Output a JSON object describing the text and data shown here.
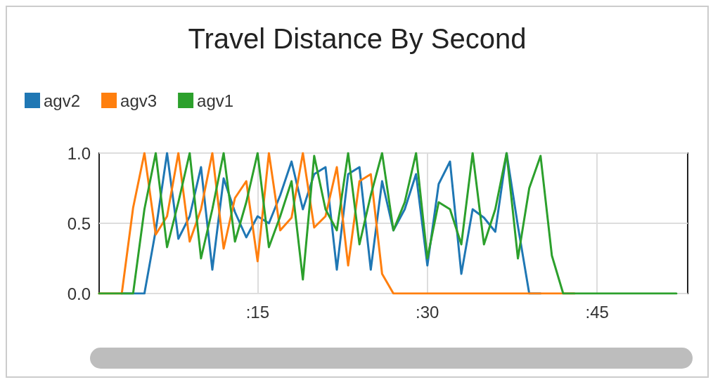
{
  "chart_data": {
    "type": "line",
    "title": "Travel Distance By Second",
    "x": [
      1,
      2,
      3,
      4,
      5,
      6,
      7,
      8,
      9,
      10,
      11,
      12,
      13,
      14,
      15,
      16,
      17,
      18,
      19,
      20,
      21,
      22,
      23,
      24,
      25,
      26,
      27,
      28,
      29,
      30,
      31,
      32,
      33,
      34,
      35,
      36,
      37,
      38,
      39,
      40,
      41,
      42,
      43,
      44,
      45,
      46,
      47,
      48,
      49,
      50,
      51,
      52
    ],
    "series": [
      {
        "name": "agv2",
        "color": "#1f77b4",
        "values": [
          null,
          null,
          0,
          0,
          0,
          0.45,
          1.0,
          0.39,
          0.55,
          0.9,
          0.17,
          0.82,
          0.58,
          0.4,
          0.55,
          0.5,
          0.7,
          0.94,
          0.6,
          0.85,
          0.9,
          0.17,
          0.85,
          0.9,
          0.17,
          0.8,
          0.45,
          0.6,
          0.85,
          0.2,
          0.78,
          0.94,
          0.14,
          0.6,
          0.54,
          0.44,
          1.0,
          0.48,
          0,
          0,
          null,
          null,
          null,
          null,
          null,
          null,
          null,
          null,
          null,
          null,
          null,
          null
        ]
      },
      {
        "name": "agv3",
        "color": "#ff7f0e",
        "values": [
          0,
          0,
          0,
          0.61,
          1.0,
          0.42,
          0.55,
          1.0,
          0.37,
          0.6,
          1.0,
          0.32,
          0.68,
          0.8,
          0.23,
          1.0,
          0.45,
          0.54,
          1.0,
          0.47,
          0.55,
          0.9,
          0.2,
          0.8,
          0.85,
          0.14,
          0,
          0,
          0,
          0,
          0,
          0,
          0,
          0,
          0,
          0,
          0,
          0,
          0,
          0,
          0,
          0,
          0,
          null,
          null,
          null,
          null,
          null,
          null,
          null,
          null,
          null
        ]
      },
      {
        "name": "agv1",
        "color": "#2ca02c",
        "values": [
          0,
          0,
          0,
          0,
          0.6,
          1.0,
          0.33,
          0.65,
          1.0,
          0.25,
          0.6,
          1.0,
          0.37,
          0.65,
          1.0,
          0.33,
          0.55,
          0.8,
          0.1,
          0.98,
          0.6,
          0.45,
          1.0,
          0.35,
          0.7,
          1.0,
          0.45,
          0.65,
          1.0,
          0.25,
          0.65,
          0.6,
          0.35,
          1.0,
          0.35,
          0.6,
          1.0,
          0.25,
          0.75,
          0.98,
          0.27,
          0,
          0,
          0,
          0,
          0,
          0,
          0,
          0,
          0,
          0,
          0
        ]
      }
    ],
    "xlim": [
      1,
      53
    ],
    "xticks": [
      {
        "value": 15,
        "label": ":15"
      },
      {
        "value": 30,
        "label": ":30"
      },
      {
        "value": 45,
        "label": ":45"
      }
    ],
    "ylim": [
      0,
      1
    ],
    "yticks": [
      {
        "value": 0,
        "label": "0.0"
      },
      {
        "value": 0.5,
        "label": "0.5"
      },
      {
        "value": 1,
        "label": "1.0"
      }
    ],
    "grid": true,
    "legend": "top left",
    "marker": "none",
    "line_style": "solid"
  }
}
